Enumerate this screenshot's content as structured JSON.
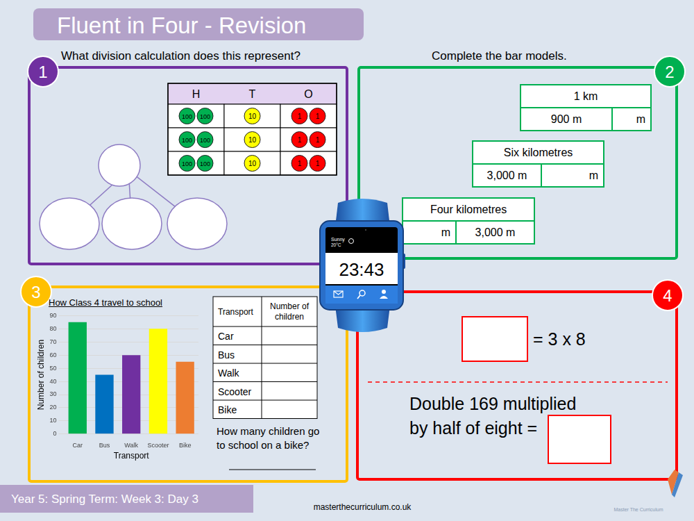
{
  "header": {
    "title": "Fluent in Four - Revision"
  },
  "panels": [
    {
      "number": 1,
      "question": "What division calculation does this represent?",
      "place_value": {
        "headers": [
          "H",
          "T",
          "O"
        ],
        "rows": [
          [
            [
              100,
              100
            ],
            [
              10
            ],
            [
              1,
              1
            ]
          ],
          [
            [
              100,
              100
            ],
            [
              10
            ],
            [
              1,
              1
            ]
          ],
          [
            [
              100,
              100
            ],
            [
              10
            ],
            [
              1,
              1
            ]
          ]
        ]
      }
    },
    {
      "number": 2,
      "question": "Complete the bar models.",
      "bar_models": [
        {
          "whole": "1 km",
          "parts": [
            "900 m",
            "m"
          ]
        },
        {
          "whole": "Six kilometres",
          "parts": [
            "3,000 m",
            "m"
          ]
        },
        {
          "whole": "Four kilometres",
          "parts": [
            "m",
            "3,000 m"
          ]
        }
      ]
    },
    {
      "number": 3,
      "table": {
        "header": [
          "Transport",
          "Number of children"
        ],
        "rows": [
          "Car",
          "Bus",
          "Walk",
          "Scooter",
          "Bike"
        ]
      },
      "question": [
        "How many children go",
        "to school on a bike?"
      ]
    },
    {
      "number": 4,
      "equation": "= 3 x 8",
      "question": [
        "Double 169 multiplied",
        "by half of eight ="
      ]
    }
  ],
  "watch": {
    "weather": "Sunny",
    "temperature": "20°C",
    "time": "23:43"
  },
  "chart_data": {
    "type": "bar",
    "title": "How Class 4 travel to school",
    "x_label": "Transport",
    "y_label": "Number of children",
    "categories": [
      "Car",
      "Bus",
      "Walk",
      "Scooter",
      "Bike"
    ],
    "values": [
      85,
      45,
      60,
      80,
      55
    ],
    "colors": [
      "#00b050",
      "#0070c0",
      "#7030a0",
      "#ffff00",
      "#ed7d31"
    ],
    "ylim": [
      0,
      90
    ],
    "yticks": [
      0,
      10,
      20,
      30,
      40,
      50,
      60,
      70,
      80,
      90
    ],
    "grid": true
  },
  "footer": {
    "label": "Year 5: Spring Term: Week 3: Day 3",
    "website": "masterthecurriculum.co.uk",
    "logo": "Master The Curriculum"
  }
}
